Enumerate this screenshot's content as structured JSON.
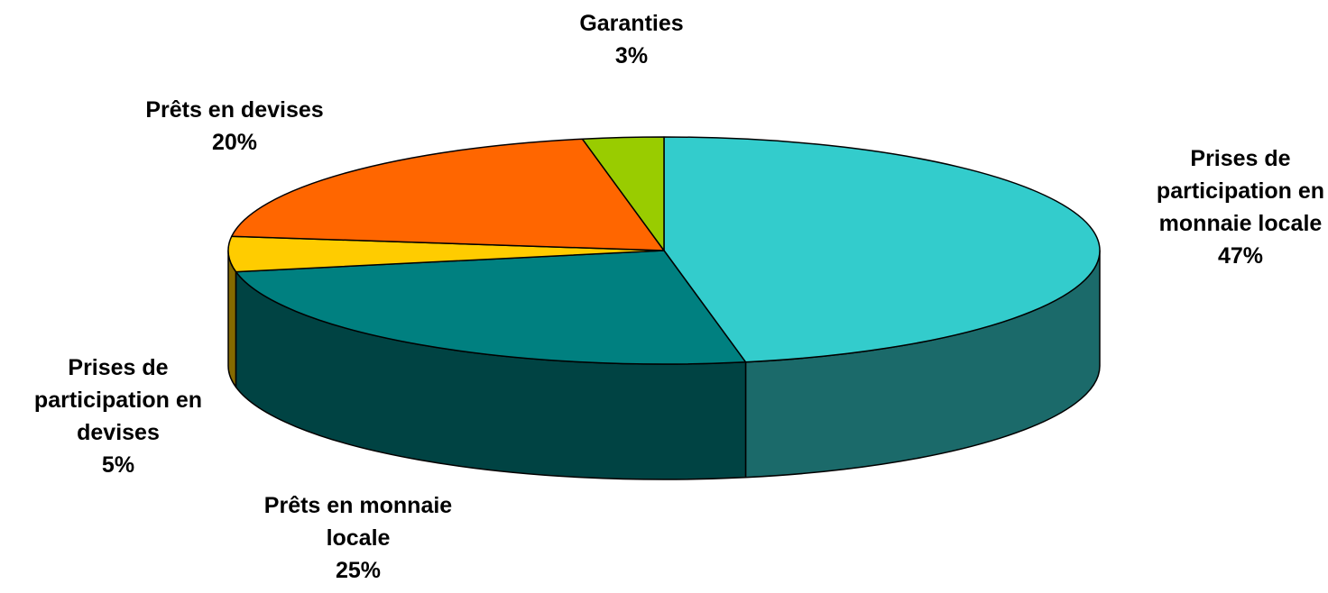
{
  "chart_data": {
    "type": "pie",
    "style": "3d",
    "slices": [
      {
        "name": "Prises de participation en monnaie locale",
        "label_lines": [
          "Prises de",
          "participation en",
          "monnaie locale"
        ],
        "percent_label": "47%",
        "value": 47,
        "color": "#33CCCC"
      },
      {
        "name": "Prêts en monnaie locale",
        "label_lines": [
          "Prêts en monnaie",
          "locale"
        ],
        "percent_label": "25%",
        "value": 25,
        "color": "#008080"
      },
      {
        "name": "Prises de participation en devises",
        "label_lines": [
          "Prises de",
          "participation en",
          "devises"
        ],
        "percent_label": "5%",
        "value": 5,
        "color": "#FFCC00"
      },
      {
        "name": "Prêts en devises",
        "label_lines": [
          "Prêts en devises"
        ],
        "percent_label": "20%",
        "value": 20,
        "color": "#FF6600"
      },
      {
        "name": "Garanties",
        "label_lines": [
          "Garanties"
        ],
        "percent_label": "3%",
        "value": 3,
        "color": "#99CC00"
      }
    ]
  }
}
